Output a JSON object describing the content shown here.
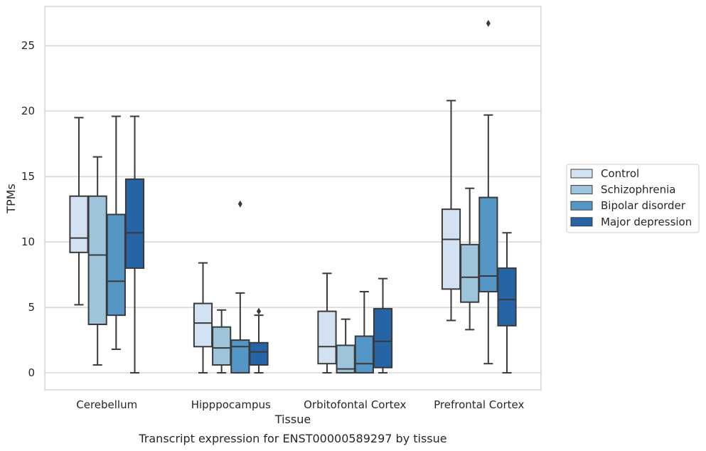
{
  "chart_data": {
    "type": "boxplot",
    "title": "",
    "caption": "Transcript expression for ENST00000589297 by tissue",
    "xlabel": "Tissue",
    "ylabel": "TPMs",
    "ylim": [
      -1.3,
      28
    ],
    "yticks": [
      0,
      5,
      10,
      15,
      20,
      25
    ],
    "grid": "horizontal",
    "legend_position": "right",
    "categories": [
      "Cerebellum",
      "Hipppocampus",
      "Orbitofontal Cortex",
      "Prefrontal Cortex"
    ],
    "series": [
      {
        "name": "Control",
        "color": "#d3e2f2",
        "boxes": [
          {
            "whisker_low": 5.2,
            "q1": 9.2,
            "median": 10.3,
            "q3": 13.5,
            "whisker_high": 19.5,
            "outliers": []
          },
          {
            "whisker_low": 0.0,
            "q1": 2.0,
            "median": 3.8,
            "q3": 5.3,
            "whisker_high": 8.4,
            "outliers": []
          },
          {
            "whisker_low": 0.0,
            "q1": 0.7,
            "median": 2.0,
            "q3": 4.7,
            "whisker_high": 7.6,
            "outliers": []
          },
          {
            "whisker_low": 4.0,
            "q1": 6.4,
            "median": 10.2,
            "q3": 12.5,
            "whisker_high": 20.8,
            "outliers": []
          }
        ]
      },
      {
        "name": "Schizophrenia",
        "color": "#9ec4dc",
        "boxes": [
          {
            "whisker_low": 0.6,
            "q1": 3.7,
            "median": 9.0,
            "q3": 13.5,
            "whisker_high": 16.5,
            "outliers": []
          },
          {
            "whisker_low": 0.0,
            "q1": 0.6,
            "median": 1.9,
            "q3": 3.5,
            "whisker_high": 4.8,
            "outliers": []
          },
          {
            "whisker_low": 0.0,
            "q1": 0.0,
            "median": 0.3,
            "q3": 2.1,
            "whisker_high": 4.1,
            "outliers": []
          },
          {
            "whisker_low": 3.3,
            "q1": 5.4,
            "median": 7.3,
            "q3": 9.8,
            "whisker_high": 14.1,
            "outliers": []
          }
        ]
      },
      {
        "name": "Bipolar disorder",
        "color": "#5496c6",
        "boxes": [
          {
            "whisker_low": 1.8,
            "q1": 4.4,
            "median": 7.0,
            "q3": 12.1,
            "whisker_high": 19.6,
            "outliers": []
          },
          {
            "whisker_low": 0.0,
            "q1": 0.0,
            "median": 2.0,
            "q3": 2.5,
            "whisker_high": 6.1,
            "outliers": [
              12.9
            ]
          },
          {
            "whisker_low": 0.0,
            "q1": 0.0,
            "median": 0.7,
            "q3": 2.8,
            "whisker_high": 6.2,
            "outliers": []
          },
          {
            "whisker_low": 0.7,
            "q1": 6.2,
            "median": 7.4,
            "q3": 13.4,
            "whisker_high": 19.7,
            "outliers": [
              26.7
            ]
          }
        ]
      },
      {
        "name": "Major depression",
        "color": "#2565a6",
        "boxes": [
          {
            "whisker_low": 0.0,
            "q1": 8.0,
            "median": 10.7,
            "q3": 14.8,
            "whisker_high": 19.6,
            "outliers": []
          },
          {
            "whisker_low": 0.0,
            "q1": 0.6,
            "median": 1.6,
            "q3": 2.3,
            "whisker_high": 4.4,
            "outliers": [
              4.7
            ]
          },
          {
            "whisker_low": 0.0,
            "q1": 0.4,
            "median": 2.4,
            "q3": 4.9,
            "whisker_high": 7.2,
            "outliers": []
          },
          {
            "whisker_low": 0.0,
            "q1": 3.6,
            "median": 5.6,
            "q3": 8.0,
            "whisker_high": 10.7,
            "outliers": []
          }
        ]
      }
    ],
    "colors": {
      "frame": "#cccccc",
      "grid": "#cccccc",
      "box_edge": "#3a3a3a",
      "whisker": "#3a3a3a"
    }
  }
}
